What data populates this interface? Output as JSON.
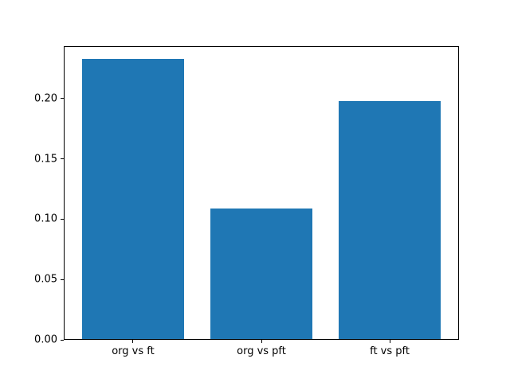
{
  "chart_data": {
    "type": "bar",
    "categories": [
      "org vs ft",
      "org vs pft",
      "ft vs pft"
    ],
    "values": [
      0.232,
      0.108,
      0.197
    ],
    "title": "",
    "xlabel": "",
    "ylabel": "",
    "ylim": [
      0,
      0.2436
    ],
    "yticks": [
      0.0,
      0.05,
      0.1,
      0.15,
      0.2
    ],
    "ytick_labels": [
      "0.00",
      "0.05",
      "0.10",
      "0.15",
      "0.20"
    ],
    "bar_color": "#1f77b4",
    "bar_width_frac": 0.8,
    "x_margin_frac": 0.05,
    "grid": false,
    "legend": null,
    "background_color": "#ffffff",
    "spine_color": "#000000"
  }
}
